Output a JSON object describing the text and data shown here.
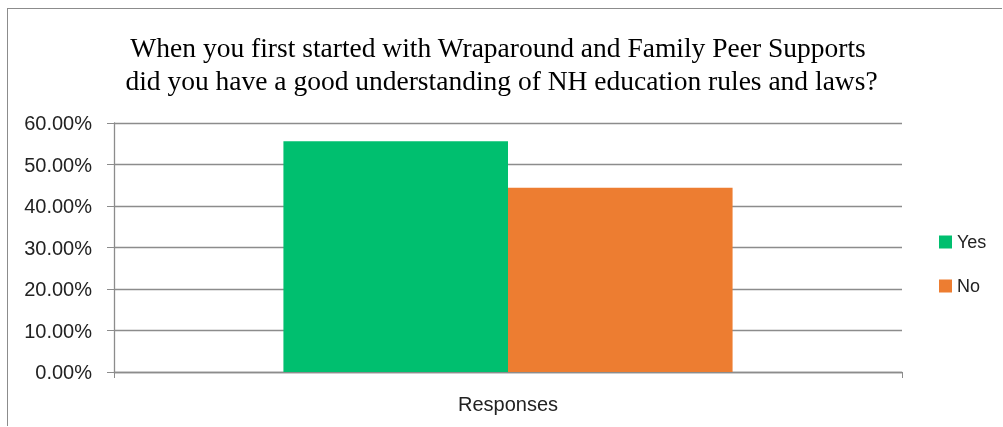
{
  "chart_data": {
    "type": "bar",
    "title": "When you first started with Wraparound and Family Peer Supports did you have a good understanding of NH education rules and laws?",
    "categories": [
      "Responses"
    ],
    "series": [
      {
        "name": "Yes",
        "color": "#00bf6f",
        "values": [
          55.6
        ]
      },
      {
        "name": "No",
        "color": "#ed7d31",
        "values": [
          44.4
        ]
      }
    ],
    "ylim": [
      0,
      60
    ],
    "yticks": [
      {
        "value": 0,
        "label": "0.00%"
      },
      {
        "value": 10,
        "label": "10.00%"
      },
      {
        "value": 20,
        "label": "20.00%"
      },
      {
        "value": 30,
        "label": "30.00%"
      },
      {
        "value": 40,
        "label": "40.00%"
      },
      {
        "value": 50,
        "label": "50.00%"
      },
      {
        "value": 60,
        "label": "60.00%"
      }
    ],
    "grid": "y",
    "legend": "right"
  }
}
